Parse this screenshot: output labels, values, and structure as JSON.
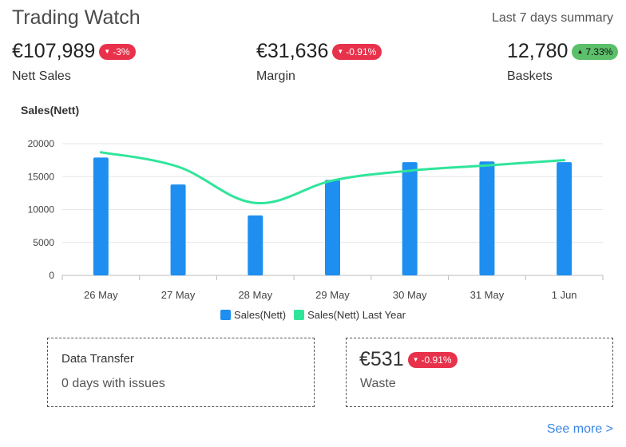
{
  "header": {
    "title": "Trading Watch",
    "summary": "Last 7 days summary"
  },
  "kpis": [
    {
      "value": "€107,989",
      "change": "-3%",
      "direction": "down",
      "label": "Nett Sales"
    },
    {
      "value": "€31,636",
      "change": "-0.91%",
      "direction": "down",
      "label": "Margin"
    },
    {
      "value": "12,780",
      "change": "7.33%",
      "direction": "up",
      "label": "Baskets"
    }
  ],
  "chart_title": "Sales(Nett)",
  "chart_data": {
    "type": "bar",
    "categories": [
      "26 May",
      "27 May",
      "28 May",
      "29 May",
      "30 May",
      "31 May",
      "1 Jun"
    ],
    "series": [
      {
        "name": "Sales(Nett)",
        "type": "bar",
        "color": "#1e8ff0",
        "values": [
          17900,
          13800,
          9100,
          14500,
          17200,
          17300,
          17200
        ]
      },
      {
        "name": "Sales(Nett) Last Year",
        "type": "line",
        "color": "#2fe59a",
        "values": [
          18700,
          16500,
          11000,
          14400,
          15900,
          16700,
          17500
        ]
      }
    ],
    "yticks": [
      "0",
      "5000",
      "10000",
      "15000",
      "20000"
    ],
    "ylim": [
      0,
      20000
    ],
    "grid": true,
    "legend": "bottom"
  },
  "data_transfer": {
    "title": "Data Transfer",
    "status": "0 days with issues"
  },
  "waste": {
    "value": "€531",
    "change": "-0.91%",
    "direction": "down",
    "label": "Waste"
  },
  "see_more": "See more >",
  "colors": {
    "negative": "#e8324b",
    "positive": "#5cbf6a",
    "link": "#3a86e8"
  }
}
